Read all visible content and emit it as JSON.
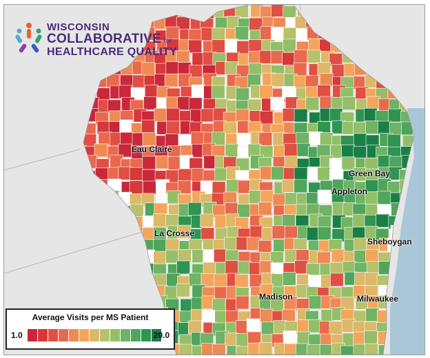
{
  "logo": {
    "line1": "WISCONSIN",
    "line2": "COLLABORATIVE",
    "line2_suffix": "for",
    "line3": "HEALTHCARE QUALITY",
    "icon": "people-circle-icon"
  },
  "cities": {
    "eau_claire": "Eau Claire",
    "green_bay": "Green Bay",
    "appleton": "Appleton",
    "la_crosse": "La Crosse",
    "sheboygan": "Sheboygan",
    "madison": "Madison",
    "milwaukee": "Milwaukee"
  },
  "legend": {
    "title": "Average Visits per MS Patient",
    "min_label": "1.0",
    "max_label": "20.0",
    "colors": [
      "#c9283a",
      "#d6383c",
      "#e04f44",
      "#e8694d",
      "#ef8a55",
      "#f3a65b",
      "#ddb868",
      "#b8c16b",
      "#93bf69",
      "#6fb364",
      "#4fa55c",
      "#2f9452",
      "#1a7f46"
    ]
  },
  "colors": {
    "lake": "#a9c7d6",
    "land_outside": "#e6e6e6",
    "no_data": "#ffffff",
    "region_border": "#ffffff"
  }
}
